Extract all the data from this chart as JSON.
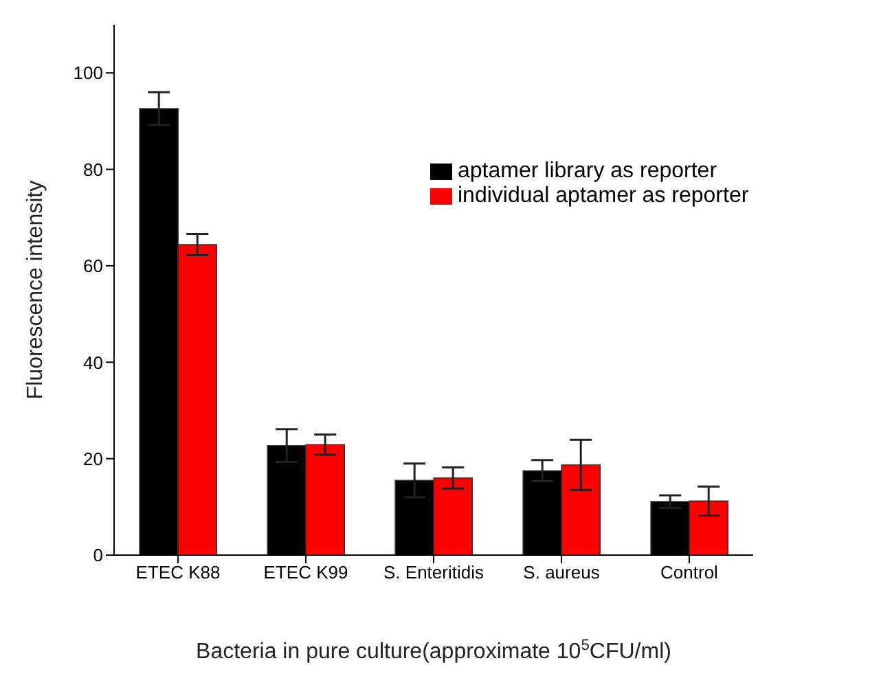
{
  "chart_data": {
    "type": "bar",
    "xlabel": "Bacteria in pure culture(approximate 10$^{5}$CFU/ml)",
    "ylabel": "Fluorescence intensity",
    "categories": [
      "ETEC K88",
      "ETEC K99",
      "S. Enteritidis",
      "S. aureus",
      "Control"
    ],
    "series": [
      {
        "name": "aptamer library as reporter",
        "color": "#000000",
        "values": [
          92.6,
          22.7,
          15.5,
          17.5,
          11.1
        ],
        "errors": [
          3.4,
          3.4,
          3.5,
          2.2,
          1.3
        ]
      },
      {
        "name": "individual aptamer as reporter",
        "color": "#ff0000",
        "values": [
          64.4,
          22.9,
          16,
          18.7,
          11.2
        ],
        "errors": [
          2.2,
          2.1,
          2.2,
          5.2,
          3
        ]
      }
    ],
    "ylim": [
      0,
      110
    ],
    "yticks": [
      0,
      20,
      40,
      60,
      80,
      100
    ],
    "grid": false,
    "legend": "top right"
  }
}
